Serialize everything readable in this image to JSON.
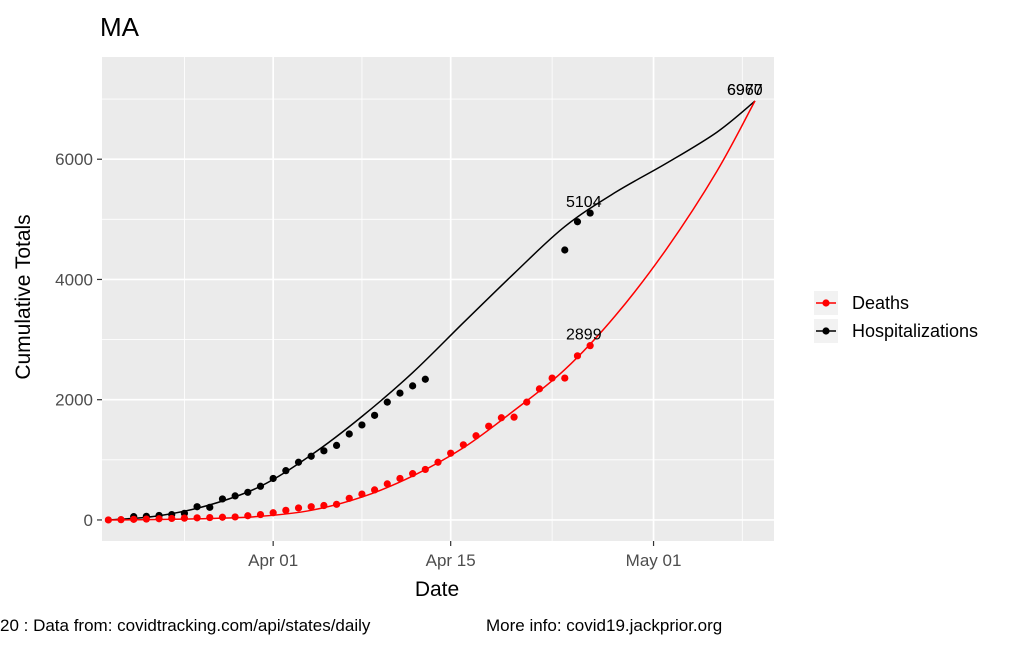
{
  "chart_data": {
    "type": "scatter",
    "title": "MA",
    "xlabel": "Date",
    "ylabel": "Cumulative Totals",
    "x_ticks": [
      {
        "label": "Apr 01",
        "day": 0
      },
      {
        "label": "Apr 15",
        "day": 14
      },
      {
        "label": "May 01",
        "day": 30
      }
    ],
    "y_ticks": [
      0,
      2000,
      4000,
      6000
    ],
    "xlim": [
      -13.5,
      39.5
    ],
    "ylim": [
      -350,
      7700
    ],
    "grid": true,
    "legend_position": "right",
    "colors": {
      "panel": "#ebebeb",
      "deaths": "#ff0000",
      "hospitalizations": "#000000"
    },
    "series": [
      {
        "name": "Hospitalizations",
        "color": "#000000",
        "points": [
          [
            -11,
            55
          ],
          [
            -10,
            60
          ],
          [
            -9,
            75
          ],
          [
            -8,
            90
          ],
          [
            -7,
            110
          ],
          [
            -6,
            220
          ],
          [
            -5,
            210
          ],
          [
            -4,
            350
          ],
          [
            -3,
            400
          ],
          [
            -2,
            460
          ],
          [
            -1,
            560
          ],
          [
            0,
            690
          ],
          [
            1,
            820
          ],
          [
            2,
            960
          ],
          [
            3,
            1060
          ],
          [
            4,
            1150
          ],
          [
            5,
            1240
          ],
          [
            6,
            1430
          ],
          [
            7,
            1580
          ],
          [
            8,
            1740
          ],
          [
            9,
            1960
          ],
          [
            10,
            2110
          ],
          [
            11,
            2230
          ],
          [
            12,
            2340
          ],
          [
            23,
            4490
          ],
          [
            24,
            4960
          ],
          [
            25,
            5104
          ]
        ],
        "fit": [
          [
            -13,
            0
          ],
          [
            -9,
            70
          ],
          [
            -5,
            250
          ],
          [
            -1,
            560
          ],
          [
            3,
            1080
          ],
          [
            7,
            1720
          ],
          [
            11,
            2450
          ],
          [
            15,
            3280
          ],
          [
            19,
            4100
          ],
          [
            23,
            4880
          ],
          [
            27,
            5450
          ],
          [
            31,
            5930
          ],
          [
            35,
            6450
          ],
          [
            38,
            6967
          ]
        ],
        "annotations": [
          {
            "day": 24.5,
            "value": 5104,
            "text": "5104"
          },
          {
            "day": 37.2,
            "value": 6967,
            "text": "6967"
          }
        ]
      },
      {
        "name": "Deaths",
        "color": "#ff0000",
        "points": [
          [
            -13,
            0
          ],
          [
            -12,
            5
          ],
          [
            -11,
            10
          ],
          [
            -10,
            15
          ],
          [
            -9,
            20
          ],
          [
            -8,
            25
          ],
          [
            -7,
            30
          ],
          [
            -6,
            35
          ],
          [
            -5,
            40
          ],
          [
            -4,
            45
          ],
          [
            -3,
            50
          ],
          [
            -2,
            70
          ],
          [
            -1,
            90
          ],
          [
            0,
            120
          ],
          [
            1,
            160
          ],
          [
            2,
            200
          ],
          [
            3,
            220
          ],
          [
            4,
            240
          ],
          [
            5,
            260
          ],
          [
            6,
            360
          ],
          [
            7,
            430
          ],
          [
            8,
            500
          ],
          [
            9,
            600
          ],
          [
            10,
            690
          ],
          [
            11,
            770
          ],
          [
            12,
            840
          ],
          [
            13,
            960
          ],
          [
            14,
            1110
          ],
          [
            15,
            1250
          ],
          [
            16,
            1400
          ],
          [
            17,
            1560
          ],
          [
            18,
            1700
          ],
          [
            19,
            1710
          ],
          [
            20,
            1960
          ],
          [
            21,
            2180
          ],
          [
            22,
            2360
          ],
          [
            23,
            2360
          ],
          [
            24,
            2730
          ],
          [
            25,
            2899
          ]
        ],
        "fit": [
          [
            -13,
            0
          ],
          [
            -9,
            8
          ],
          [
            -5,
            25
          ],
          [
            -1,
            60
          ],
          [
            3,
            160
          ],
          [
            7,
            380
          ],
          [
            11,
            730
          ],
          [
            15,
            1200
          ],
          [
            19,
            1820
          ],
          [
            23,
            2500
          ],
          [
            27,
            3400
          ],
          [
            31,
            4500
          ],
          [
            35,
            5800
          ],
          [
            38,
            6970
          ]
        ],
        "annotations": [
          {
            "day": 24.5,
            "value": 2899,
            "text": "2899"
          },
          {
            "day": 37.2,
            "value": 6970,
            "text": "6970"
          }
        ]
      }
    ],
    "legend": [
      {
        "label": "Deaths",
        "color": "#ff0000"
      },
      {
        "label": "Hospitalizations",
        "color": "#000000"
      }
    ]
  },
  "caption": {
    "left": "20 : Data from: covidtracking.com/api/states/daily",
    "right": "More info: covid19.jackprior.org"
  }
}
